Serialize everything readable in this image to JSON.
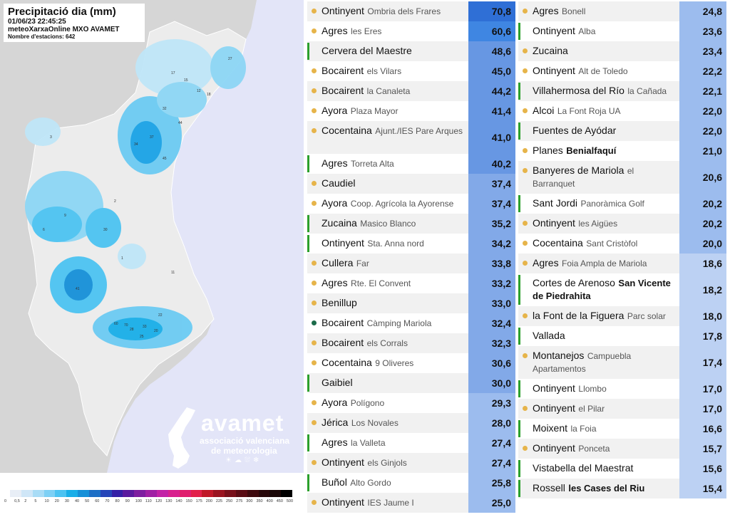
{
  "map": {
    "title": "Precipitació dia (mm)",
    "datetime": "01/06/23 22:45:25",
    "source": "meteoXarxaOnline MXO AVAMET",
    "stations_count": "Nombre d'estacions: 642",
    "logo_word": "avamet",
    "logo_line1": "associació valenciana",
    "logo_line2": "de meteorologia",
    "legend_ticks": [
      "0",
      "0,5",
      "2",
      "5",
      "10",
      "20",
      "30",
      "40",
      "50",
      "60",
      "70",
      "80",
      "90",
      "100",
      "110",
      "120",
      "130",
      "140",
      "150",
      "175",
      "200",
      "225",
      "250",
      "275",
      "300",
      "350",
      "400",
      "450",
      "500"
    ],
    "legend_colors": [
      "#e8eef6",
      "#cfe6f7",
      "#a8dcf6",
      "#7dd0f5",
      "#4cc3f2",
      "#19aee8",
      "#1690d8",
      "#1d6fc6",
      "#2545b8",
      "#3420a6",
      "#5a1a9e",
      "#7e1ea0",
      "#a020a4",
      "#c222a6",
      "#d8208e",
      "#e01e6e",
      "#e2204a",
      "#c01828",
      "#9a1420",
      "#78101a",
      "#5a0c14",
      "#3e0a0e",
      "#28080a",
      "#1a0606",
      "#000000"
    ],
    "station_labels": [
      "41",
      "30",
      "37",
      "34",
      "45",
      "33",
      "28",
      "25",
      "20",
      "22",
      "17",
      "15",
      "12",
      "9",
      "6",
      "3",
      "2",
      "1",
      "11",
      "18",
      "27",
      "32",
      "44",
      "70",
      "60"
    ],
    "colors": {
      "sea": "#e3e5f8",
      "land": "#d6d6d6",
      "rain_low": "#bfe6f8",
      "rain_mid": "#6ccbf3",
      "rain_high": "#1aa3e6"
    }
  },
  "table": {
    "col1": [
      {
        "town": "Ontinyent",
        "loc": "Ombria dels Frares",
        "value": "70,8",
        "marker": "dot",
        "color": "#2f6fd6"
      },
      {
        "town": "Agres",
        "loc": "les Eres",
        "value": "60,6",
        "marker": "dot",
        "color": "#3f86e2"
      },
      {
        "town": "Cervera del Maestre",
        "loc": "",
        "value": "48,6",
        "marker": "bar",
        "color": "#6797e3"
      },
      {
        "town": "Bocairent",
        "loc": "els Vilars",
        "value": "45,0",
        "marker": "dot",
        "color": "#6797e3"
      },
      {
        "town": "Bocairent",
        "loc": "la Canaleta",
        "value": "44,2",
        "marker": "dot",
        "color": "#6797e3"
      },
      {
        "town": "Ayora",
        "loc": "Plaza Mayor",
        "value": "41,4",
        "marker": "dot",
        "color": "#6797e3"
      },
      {
        "town": "Cocentaina",
        "loc": "Ajunt./IES Pare Arques",
        "value": "41,0",
        "marker": "dot",
        "color": "#6797e3",
        "tall": true
      },
      {
        "town": "Agres",
        "loc": "Torreta Alta",
        "value": "40,2",
        "marker": "bar",
        "color": "#6797e3"
      },
      {
        "town": "Caudiel",
        "loc": "",
        "value": "37,4",
        "marker": "dot",
        "color": "#82a9e8"
      },
      {
        "town": "Ayora",
        "loc": "Coop. Agrícola la Ayorense",
        "value": "37,4",
        "marker": "dot",
        "color": "#82a9e8"
      },
      {
        "town": "Zucaina",
        "loc": "Masico Blanco",
        "value": "35,2",
        "marker": "bar",
        "color": "#82a9e8"
      },
      {
        "town": "Ontinyent",
        "loc": "Sta. Anna nord",
        "value": "34,2",
        "marker": "bar",
        "color": "#82a9e8"
      },
      {
        "town": "Cullera",
        "loc": "Far",
        "value": "33,8",
        "marker": "dot",
        "color": "#82a9e8"
      },
      {
        "town": "Agres",
        "loc": "Rte. El Convent",
        "value": "33,2",
        "marker": "dot",
        "color": "#82a9e8"
      },
      {
        "town": "Benillup",
        "loc": "",
        "value": "33,0",
        "marker": "dot",
        "color": "#82a9e8"
      },
      {
        "town": "Bocairent",
        "loc": "Càmping Mariola",
        "value": "32,4",
        "marker": "green",
        "color": "#82a9e8"
      },
      {
        "town": "Bocairent",
        "loc": "els Corrals",
        "value": "32,3",
        "marker": "dot",
        "color": "#82a9e8"
      },
      {
        "town": "Cocentaina",
        "loc": "9 Oliveres",
        "value": "30,6",
        "marker": "dot",
        "color": "#82a9e8"
      },
      {
        "town": "Gaibiel",
        "loc": "",
        "value": "30,0",
        "marker": "bar",
        "color": "#82a9e8"
      },
      {
        "town": "Ayora",
        "loc": "Polígono",
        "value": "29,3",
        "marker": "dot",
        "color": "#9cbcee"
      },
      {
        "town": "Jérica",
        "loc": "Los Novales",
        "value": "28,0",
        "marker": "dot",
        "color": "#9cbcee"
      },
      {
        "town": "Agres",
        "loc": "la Valleta",
        "value": "27,4",
        "marker": "bar",
        "color": "#9cbcee"
      },
      {
        "town": "Ontinyent",
        "loc": "els Ginjols",
        "value": "27,4",
        "marker": "dot",
        "color": "#9cbcee"
      },
      {
        "town": "Buñol",
        "loc": "Alto Gordo",
        "value": "25,8",
        "marker": "bar",
        "color": "#9cbcee"
      },
      {
        "town": "Ontinyent",
        "loc": "IES Jaume I",
        "value": "25,0",
        "marker": "dot",
        "color": "#9cbcee"
      }
    ],
    "col2": [
      {
        "town": "Agres",
        "loc": "Bonell",
        "value": "24,8",
        "marker": "dot",
        "color": "#9cbcee"
      },
      {
        "town": "Ontinyent",
        "loc": "Alba",
        "value": "23,6",
        "marker": "bar",
        "color": "#9cbcee"
      },
      {
        "town": "Zucaina",
        "loc": "",
        "value": "23,4",
        "marker": "dot",
        "color": "#9cbcee"
      },
      {
        "town": "Ontinyent",
        "loc": "Alt de Toledo",
        "value": "22,2",
        "marker": "dot",
        "color": "#9cbcee"
      },
      {
        "town": "Villahermosa del Río",
        "loc": "la Cañada",
        "value": "22,1",
        "marker": "bar",
        "color": "#9cbcee"
      },
      {
        "town": "Alcoi",
        "loc": "La Font Roja UA",
        "value": "22,0",
        "marker": "dot",
        "color": "#9cbcee"
      },
      {
        "town": "Fuentes de Ayódar",
        "loc": "",
        "value": "22,0",
        "marker": "bar",
        "color": "#9cbcee"
      },
      {
        "town": "Planes",
        "loc": "Benialfaquí",
        "value": "21,0",
        "marker": "dot",
        "color": "#9cbcee",
        "locbold": true
      },
      {
        "town": "Banyeres de Mariola",
        "loc": "el Barranquet",
        "value": "20,6",
        "marker": "dot",
        "color": "#9cbcee",
        "tall": true
      },
      {
        "town": "Sant Jordi",
        "loc": "Panoràmica Golf",
        "value": "20,2",
        "marker": "bar",
        "color": "#9cbcee"
      },
      {
        "town": "Ontinyent",
        "loc": "les Aigües",
        "value": "20,2",
        "marker": "dot",
        "color": "#9cbcee"
      },
      {
        "town": "Cocentaina",
        "loc": "Sant Cristòfol",
        "value": "20,0",
        "marker": "dot",
        "color": "#9cbcee"
      },
      {
        "town": "Agres",
        "loc": "Foia Ampla de Mariola",
        "value": "18,6",
        "marker": "dot",
        "color": "#bcd1f3"
      },
      {
        "town": "Cortes de Arenoso",
        "loc": "San Vicente de Piedrahita",
        "value": "18,2",
        "marker": "bar",
        "color": "#bcd1f3",
        "tall": true,
        "locbold": true
      },
      {
        "town": "la Font de la Figuera",
        "loc": "Parc solar",
        "value": "18,0",
        "marker": "dot",
        "color": "#bcd1f3"
      },
      {
        "town": "Vallada",
        "loc": "",
        "value": "17,8",
        "marker": "bar",
        "color": "#bcd1f3"
      },
      {
        "town": "Montanejos",
        "loc": "Campuebla Apartamentos",
        "value": "17,4",
        "marker": "dot",
        "color": "#bcd1f3",
        "tall": true
      },
      {
        "town": "Ontinyent",
        "loc": "Llombo",
        "value": "17,0",
        "marker": "bar",
        "color": "#bcd1f3"
      },
      {
        "town": "Ontinyent",
        "loc": "el Pilar",
        "value": "17,0",
        "marker": "dot",
        "color": "#bcd1f3"
      },
      {
        "town": "Moixent",
        "loc": "la Foia",
        "value": "16,6",
        "marker": "bar",
        "color": "#bcd1f3"
      },
      {
        "town": "Ontinyent",
        "loc": "Ponceta",
        "value": "15,7",
        "marker": "dot",
        "color": "#bcd1f3"
      },
      {
        "town": "Vistabella del Maestrat",
        "loc": "",
        "value": "15,6",
        "marker": "bar",
        "color": "#bcd1f3"
      },
      {
        "town": "Rossell",
        "loc": "les Cases del Riu",
        "value": "15,4",
        "marker": "bar",
        "color": "#bcd1f3",
        "locbold": true
      }
    ]
  }
}
